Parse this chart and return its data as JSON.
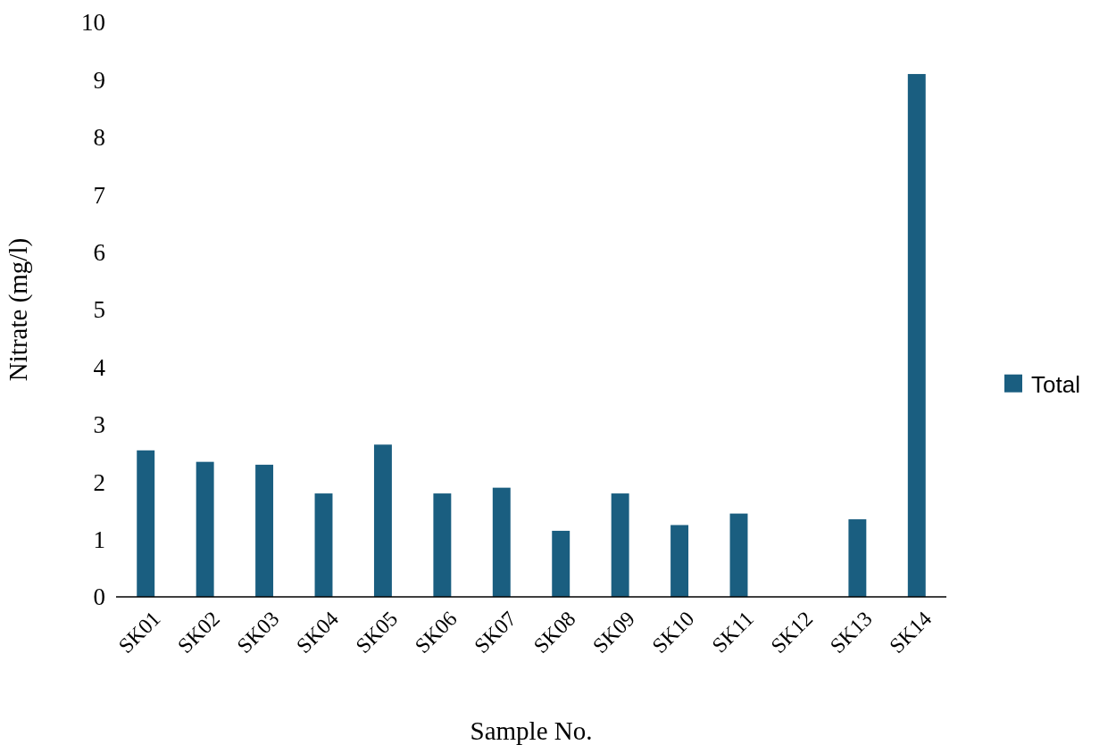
{
  "chart_data": {
    "type": "bar",
    "xlabel": "Sample No.",
    "ylabel": "Nitrate (mg/l)",
    "categories": [
      "SK01",
      "SK02",
      "SK03",
      "SK04",
      "SK05",
      "SK06",
      "SK07",
      "SK08",
      "SK09",
      "SK10",
      "SK11",
      "SK12",
      "SK13",
      "SK14"
    ],
    "series": [
      {
        "name": "Total",
        "color": "#1a5e80",
        "values": [
          2.55,
          2.35,
          2.3,
          1.8,
          2.65,
          1.8,
          1.9,
          1.15,
          1.8,
          1.25,
          1.45,
          0,
          1.35,
          9.1
        ]
      }
    ],
    "ylim": [
      0,
      10
    ],
    "yticks": [
      0,
      1,
      2,
      3,
      4,
      5,
      6,
      7,
      8,
      9,
      10
    ],
    "legend": "right"
  }
}
